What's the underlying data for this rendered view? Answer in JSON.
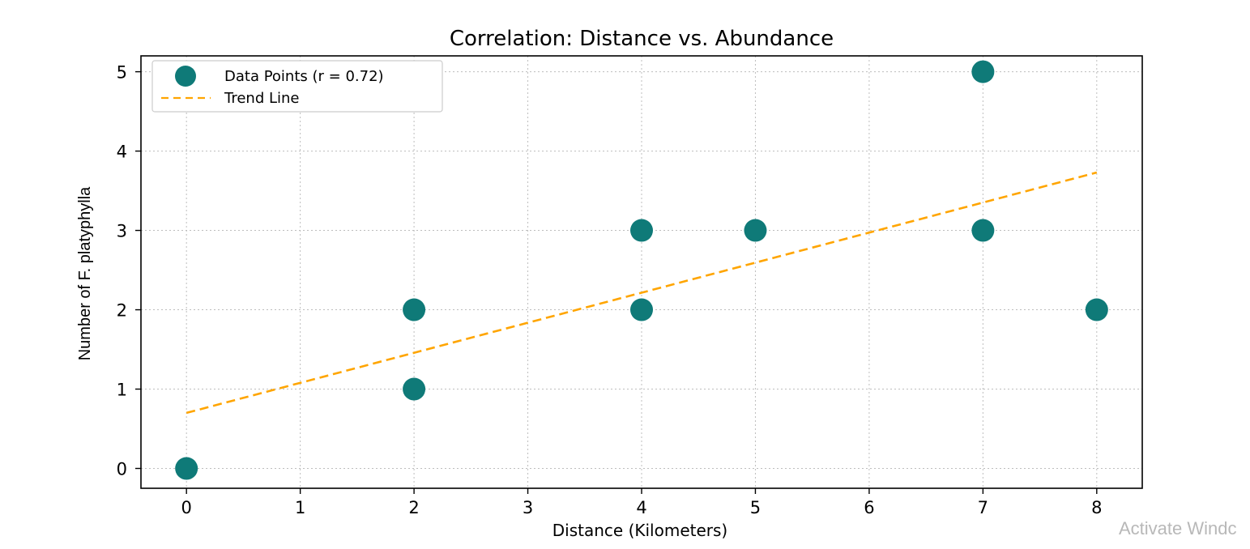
{
  "chart_data": {
    "type": "scatter",
    "title": "Correlation: Distance vs. Abundance",
    "xlabel": "Distance (Kilometers)",
    "ylabel": "Number of F. platyphylla",
    "xlim": [
      -0.4,
      8.4
    ],
    "ylim": [
      -0.25,
      5.2
    ],
    "xticks": [
      0,
      1,
      2,
      3,
      4,
      5,
      6,
      7,
      8
    ],
    "yticks": [
      0,
      1,
      2,
      3,
      4,
      5
    ],
    "grid": true,
    "legend_position": "top-left",
    "series": [
      {
        "name": "Data Points (r = 0.72)",
        "kind": "scatter",
        "color": "#0f7a78",
        "points": [
          {
            "x": 0,
            "y": 0
          },
          {
            "x": 2,
            "y": 1
          },
          {
            "x": 2,
            "y": 2
          },
          {
            "x": 4,
            "y": 2
          },
          {
            "x": 4,
            "y": 3
          },
          {
            "x": 5,
            "y": 3
          },
          {
            "x": 7,
            "y": 3
          },
          {
            "x": 7,
            "y": 5
          },
          {
            "x": 8,
            "y": 2
          }
        ]
      },
      {
        "name": "Trend Line",
        "kind": "line",
        "style": "dashed",
        "color": "#ffa500",
        "points": [
          {
            "x": 0,
            "y": 0.7
          },
          {
            "x": 8,
            "y": 3.73
          }
        ]
      }
    ]
  },
  "watermark": "Activate Windc"
}
